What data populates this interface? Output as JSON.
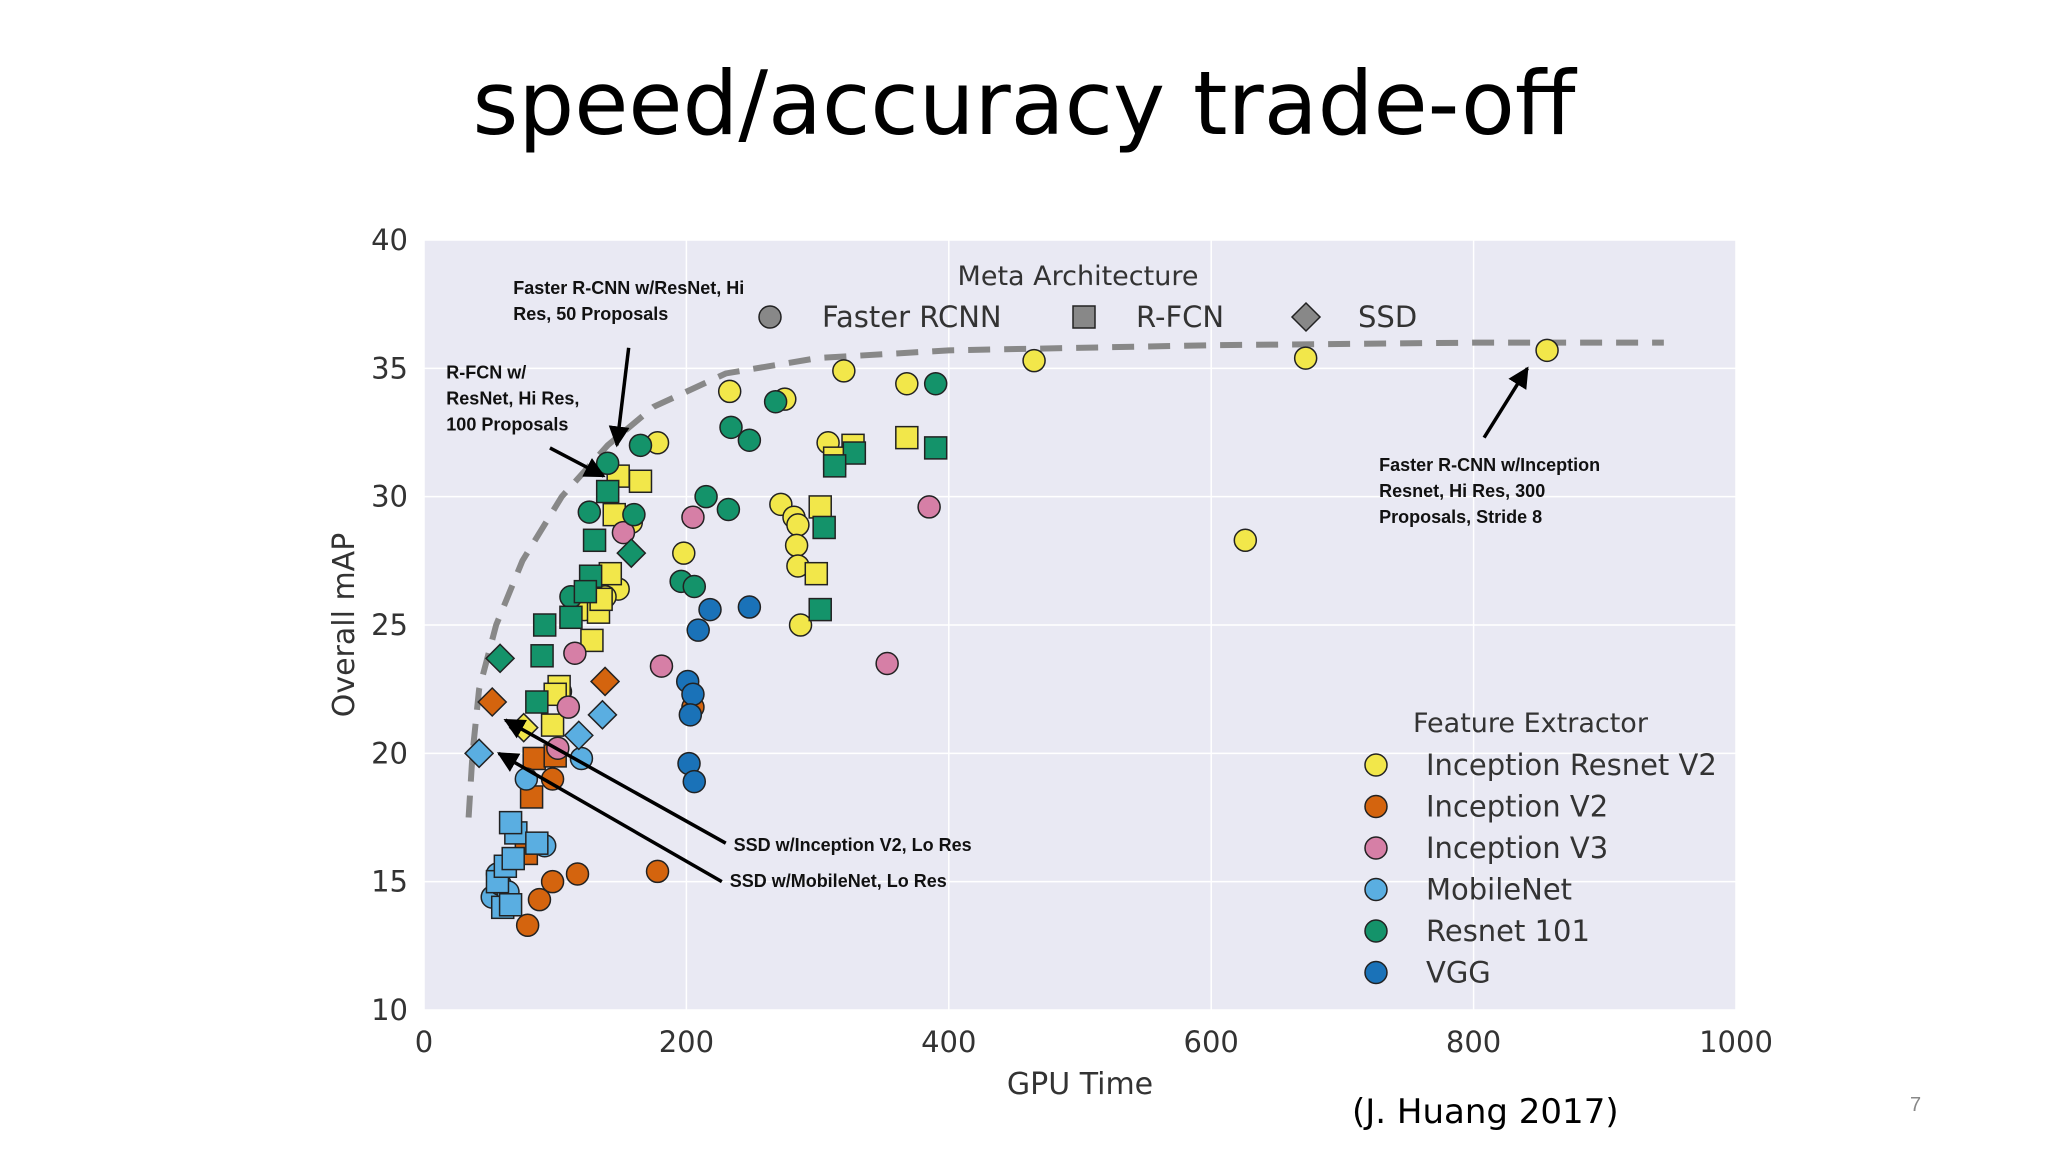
{
  "slide": {
    "title": "speed/accuracy trade-off",
    "citation": "(J. Huang 2017)",
    "page_number": "7"
  },
  "colors": {
    "plot_background": "#e9e9f3",
    "grid": "#ffffff",
    "frontier": "#888888",
    "point_stroke": "#222222",
    "Inception Resnet V2": "#f2e74a",
    "Inception V2": "#d4640e",
    "Inception V3": "#d67fa6",
    "MobileNet": "#5aaee1",
    "Resnet 101": "#14936a",
    "VGG": "#1a72b8",
    "meta_marker": "#888888"
  },
  "chart_data": {
    "type": "scatter",
    "xlabel": "GPU Time",
    "ylabel": "Overall mAP",
    "xlim": [
      0,
      1000
    ],
    "ylim": [
      10,
      40
    ],
    "xticks": [
      "0",
      "200",
      "400",
      "600",
      "800",
      "1000"
    ],
    "yticks": [
      "10",
      "15",
      "20",
      "25",
      "30",
      "35",
      "40"
    ],
    "grid": true,
    "legends": {
      "meta": {
        "title": "Meta Architecture",
        "placement": "top-center",
        "items": [
          {
            "label": "Faster RCNN",
            "marker": "circle"
          },
          {
            "label": "R-FCN",
            "marker": "square"
          },
          {
            "label": "SSD",
            "marker": "diamond"
          }
        ]
      },
      "feature": {
        "title": "Feature Extractor",
        "placement": "bottom-right",
        "items": [
          "Inception Resnet V2",
          "Inception V2",
          "Inception V3",
          "MobileNet",
          "Resnet 101",
          "VGG"
        ]
      }
    },
    "frontier": [
      [
        34,
        17.5
      ],
      [
        37,
        20
      ],
      [
        42,
        22.5
      ],
      [
        55,
        25
      ],
      [
        75,
        27.5
      ],
      [
        105,
        30
      ],
      [
        140,
        32
      ],
      [
        175,
        33.5
      ],
      [
        230,
        34.8
      ],
      [
        300,
        35.4
      ],
      [
        400,
        35.7
      ],
      [
        600,
        35.9
      ],
      [
        800,
        36
      ],
      [
        945,
        36
      ]
    ],
    "series": [
      {
        "name": "Inception Resnet V2",
        "points": [
          {
            "m": "circle",
            "x": 233,
            "y": 34.1
          },
          {
            "m": "circle",
            "x": 275,
            "y": 33.8
          },
          {
            "m": "circle",
            "x": 320,
            "y": 34.9
          },
          {
            "m": "circle",
            "x": 368,
            "y": 34.4
          },
          {
            "m": "circle",
            "x": 465,
            "y": 35.3
          },
          {
            "m": "circle",
            "x": 672,
            "y": 35.4
          },
          {
            "m": "circle",
            "x": 856,
            "y": 35.7
          },
          {
            "m": "circle",
            "x": 626,
            "y": 28.3
          },
          {
            "m": "circle",
            "x": 178,
            "y": 32.1
          },
          {
            "m": "circle",
            "x": 308,
            "y": 32.1
          },
          {
            "m": "circle",
            "x": 272,
            "y": 29.7
          },
          {
            "m": "circle",
            "x": 282,
            "y": 29.2
          },
          {
            "m": "circle",
            "x": 285,
            "y": 28.9
          },
          {
            "m": "circle",
            "x": 284,
            "y": 28.1
          },
          {
            "m": "circle",
            "x": 285,
            "y": 27.3
          },
          {
            "m": "circle",
            "x": 198,
            "y": 27.8
          },
          {
            "m": "circle",
            "x": 287,
            "y": 25.0
          },
          {
            "m": "circle",
            "x": 158,
            "y": 29.0
          },
          {
            "m": "circle",
            "x": 148,
            "y": 26.4
          },
          {
            "m": "circle",
            "x": 138,
            "y": 26.1
          },
          {
            "m": "circle",
            "x": 122,
            "y": 25.6
          },
          {
            "m": "circle",
            "x": 104,
            "y": 22.4
          },
          {
            "m": "square",
            "x": 148,
            "y": 30.8
          },
          {
            "m": "square",
            "x": 165,
            "y": 30.6
          },
          {
            "m": "square",
            "x": 145,
            "y": 29.3
          },
          {
            "m": "square",
            "x": 142,
            "y": 27.0
          },
          {
            "m": "square",
            "x": 133,
            "y": 25.5
          },
          {
            "m": "square",
            "x": 128,
            "y": 24.4
          },
          {
            "m": "square",
            "x": 103,
            "y": 22.6
          },
          {
            "m": "square",
            "x": 100,
            "y": 22.3
          },
          {
            "m": "square",
            "x": 98,
            "y": 21.1
          },
          {
            "m": "square",
            "x": 368,
            "y": 32.3
          },
          {
            "m": "square",
            "x": 327,
            "y": 32.0
          },
          {
            "m": "square",
            "x": 313,
            "y": 31.5
          },
          {
            "m": "square",
            "x": 302,
            "y": 29.6
          },
          {
            "m": "square",
            "x": 299,
            "y": 27.0
          },
          {
            "m": "square",
            "x": 135,
            "y": 26.0
          },
          {
            "m": "diamond",
            "x": 76,
            "y": 21.0
          }
        ]
      },
      {
        "name": "Inception V2",
        "points": [
          {
            "m": "circle",
            "x": 205,
            "y": 21.8
          },
          {
            "m": "circle",
            "x": 178,
            "y": 15.4
          },
          {
            "m": "circle",
            "x": 117,
            "y": 15.3
          },
          {
            "m": "circle",
            "x": 98,
            "y": 15.0
          },
          {
            "m": "circle",
            "x": 88,
            "y": 14.3
          },
          {
            "m": "circle",
            "x": 79,
            "y": 13.3
          },
          {
            "m": "circle",
            "x": 98,
            "y": 19.0
          },
          {
            "m": "square",
            "x": 82,
            "y": 18.3
          },
          {
            "m": "square",
            "x": 84,
            "y": 19.8
          },
          {
            "m": "square",
            "x": 100,
            "y": 19.9
          },
          {
            "m": "square",
            "x": 78,
            "y": 16.1
          },
          {
            "m": "diamond",
            "x": 52,
            "y": 22.0
          },
          {
            "m": "diamond",
            "x": 138,
            "y": 22.8
          }
        ]
      },
      {
        "name": "Inception V3",
        "points": [
          {
            "m": "circle",
            "x": 205,
            "y": 29.2
          },
          {
            "m": "circle",
            "x": 181,
            "y": 23.4
          },
          {
            "m": "circle",
            "x": 353,
            "y": 23.5
          },
          {
            "m": "circle",
            "x": 385,
            "y": 29.6
          },
          {
            "m": "circle",
            "x": 152,
            "y": 28.6
          },
          {
            "m": "circle",
            "x": 115,
            "y": 23.9
          },
          {
            "m": "circle",
            "x": 110,
            "y": 21.8
          },
          {
            "m": "circle",
            "x": 102,
            "y": 20.2
          }
        ]
      },
      {
        "name": "MobileNet",
        "points": [
          {
            "m": "circle",
            "x": 92,
            "y": 16.4
          },
          {
            "m": "circle",
            "x": 120,
            "y": 19.8
          },
          {
            "m": "circle",
            "x": 78,
            "y": 19.0
          },
          {
            "m": "circle",
            "x": 52,
            "y": 14.4
          },
          {
            "m": "circle",
            "x": 58,
            "y": 14.9
          },
          {
            "m": "circle",
            "x": 64,
            "y": 14.6
          },
          {
            "m": "circle",
            "x": 56,
            "y": 15.3
          },
          {
            "m": "square",
            "x": 60,
            "y": 14.0
          },
          {
            "m": "square",
            "x": 66,
            "y": 14.1
          },
          {
            "m": "square",
            "x": 56,
            "y": 15.0
          },
          {
            "m": "square",
            "x": 62,
            "y": 15.6
          },
          {
            "m": "square",
            "x": 68,
            "y": 15.9
          },
          {
            "m": "square",
            "x": 70,
            "y": 16.9
          },
          {
            "m": "square",
            "x": 66,
            "y": 17.3
          },
          {
            "m": "square",
            "x": 86,
            "y": 16.5
          },
          {
            "m": "diamond",
            "x": 42,
            "y": 20.0
          },
          {
            "m": "diamond",
            "x": 118,
            "y": 20.7
          },
          {
            "m": "diamond",
            "x": 136,
            "y": 21.5
          }
        ]
      },
      {
        "name": "Resnet 101",
        "points": [
          {
            "m": "circle",
            "x": 140,
            "y": 31.3
          },
          {
            "m": "circle",
            "x": 165,
            "y": 32.0
          },
          {
            "m": "circle",
            "x": 268,
            "y": 33.7
          },
          {
            "m": "circle",
            "x": 390,
            "y": 34.4
          },
          {
            "m": "circle",
            "x": 234,
            "y": 32.7
          },
          {
            "m": "circle",
            "x": 248,
            "y": 32.2
          },
          {
            "m": "circle",
            "x": 215,
            "y": 30.0
          },
          {
            "m": "circle",
            "x": 232,
            "y": 29.5
          },
          {
            "m": "circle",
            "x": 196,
            "y": 26.7
          },
          {
            "m": "circle",
            "x": 206,
            "y": 26.5
          },
          {
            "m": "circle",
            "x": 126,
            "y": 29.4
          },
          {
            "m": "circle",
            "x": 160,
            "y": 29.3
          },
          {
            "m": "circle",
            "x": 112,
            "y": 26.1
          },
          {
            "m": "square",
            "x": 140,
            "y": 30.2
          },
          {
            "m": "square",
            "x": 130,
            "y": 28.3
          },
          {
            "m": "square",
            "x": 127,
            "y": 26.9
          },
          {
            "m": "square",
            "x": 123,
            "y": 26.3
          },
          {
            "m": "square",
            "x": 112,
            "y": 25.3
          },
          {
            "m": "square",
            "x": 92,
            "y": 25.0
          },
          {
            "m": "square",
            "x": 90,
            "y": 23.8
          },
          {
            "m": "square",
            "x": 86,
            "y": 22.0
          },
          {
            "m": "square",
            "x": 390,
            "y": 31.9
          },
          {
            "m": "square",
            "x": 328,
            "y": 31.7
          },
          {
            "m": "square",
            "x": 313,
            "y": 31.2
          },
          {
            "m": "square",
            "x": 305,
            "y": 28.8
          },
          {
            "m": "square",
            "x": 302,
            "y": 25.6
          },
          {
            "m": "diamond",
            "x": 58,
            "y": 23.7
          },
          {
            "m": "diamond",
            "x": 158,
            "y": 27.8
          }
        ]
      },
      {
        "name": "VGG",
        "points": [
          {
            "m": "circle",
            "x": 201,
            "y": 22.8
          },
          {
            "m": "circle",
            "x": 205,
            "y": 22.3
          },
          {
            "m": "circle",
            "x": 203,
            "y": 21.5
          },
          {
            "m": "circle",
            "x": 202,
            "y": 19.6
          },
          {
            "m": "circle",
            "x": 206,
            "y": 18.9
          },
          {
            "m": "circle",
            "x": 209,
            "y": 24.8
          },
          {
            "m": "circle",
            "x": 218,
            "y": 25.6
          },
          {
            "m": "circle",
            "x": 248,
            "y": 25.7
          }
        ]
      }
    ],
    "annotations": [
      {
        "lines": [
          "Faster R-CNN w/ResNet, Hi",
          "Res, 50 Proposals"
        ],
        "x": 68,
        "y": 37.9,
        "arrow_from": [
          156,
          35.8
        ],
        "arrow_to": [
          147,
          32.0
        ]
      },
      {
        "lines": [
          "R-FCN w/",
          "ResNet, Hi Res,",
          "100 Proposals"
        ],
        "x": 17,
        "y": 34.6,
        "arrow_from": [
          96,
          31.9
        ],
        "arrow_to": [
          137,
          30.8
        ]
      },
      {
        "lines": [
          "Faster R-CNN w/Inception",
          "Resnet, Hi Res, 300",
          "Proposals, Stride 8"
        ],
        "x": 728,
        "y": 31.0,
        "arrow_from": [
          808,
          32.3
        ],
        "arrow_to": [
          841,
          35.0
        ]
      },
      {
        "lines": [
          "SSD w/Inception V2, Lo Res"
        ],
        "x": 236,
        "y": 16.2,
        "arrow_from": [
          230,
          16.5
        ],
        "arrow_to": [
          62,
          21.3
        ]
      },
      {
        "lines": [
          "SSD w/MobileNet, Lo Res"
        ],
        "x": 233,
        "y": 14.8,
        "arrow_from": [
          227,
          15.0
        ],
        "arrow_to": [
          57,
          20.0
        ]
      }
    ]
  }
}
